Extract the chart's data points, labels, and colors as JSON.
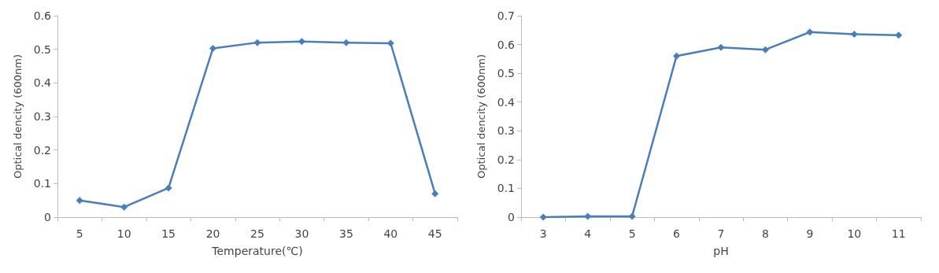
{
  "chart_data": [
    {
      "type": "line",
      "xlabel": "Temperature(℃)",
      "ylabel": "Optical dencity (600nm)",
      "categories": [
        "5",
        "10",
        "15",
        "20",
        "25",
        "30",
        "35",
        "40",
        "45"
      ],
      "series": [
        {
          "color": "#4a7ebb",
          "values": [
            0.05,
            0.03,
            0.087,
            0.503,
            0.52,
            0.523,
            0.52,
            0.518,
            0.07
          ]
        }
      ],
      "ylim": [
        0,
        0.6
      ],
      "yticks": [
        0,
        0.1,
        0.2,
        0.3,
        0.4,
        0.5,
        0.6
      ],
      "grid": false,
      "marker": "diamond",
      "line_style": "solid"
    },
    {
      "type": "line",
      "xlabel": "pH",
      "ylabel": "Optical dencity (600nm)",
      "categories": [
        "3",
        "4",
        "5",
        "6",
        "7",
        "8",
        "9",
        "10",
        "11"
      ],
      "series": [
        {
          "color": "#4a7ebb",
          "values": [
            0,
            0.003,
            0.003,
            0.56,
            0.59,
            0.582,
            0.643,
            0.636,
            0.632
          ]
        }
      ],
      "ylim": [
        0,
        0.7
      ],
      "yticks": [
        0,
        0.1,
        0.2,
        0.3,
        0.4,
        0.5,
        0.6,
        0.7
      ],
      "grid": false,
      "marker": "diamond",
      "line_style": "solid"
    }
  ]
}
